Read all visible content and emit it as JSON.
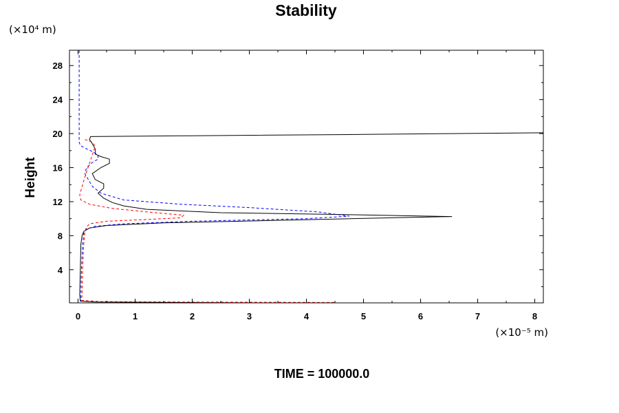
{
  "chart_data": {
    "type": "line",
    "title": "Stability",
    "ylabel": "Height",
    "yunit": "(×10⁴ m)",
    "xunit": "(×10⁻⁵ m)",
    "footer": "TIME = 100000.0",
    "xlim": [
      -0.15,
      8.15
    ],
    "ylim": [
      0.1,
      29.8
    ],
    "xticks": [
      0,
      1,
      2,
      3,
      4,
      5,
      6,
      7,
      8
    ],
    "yticks": [
      4,
      8,
      12,
      16,
      20,
      24,
      28
    ],
    "grid": false,
    "series": [
      {
        "color": "#000000",
        "style": "solid",
        "points": [
          [
            3.1,
            0.1
          ],
          [
            0.3,
            0.2
          ],
          [
            0.04,
            0.3
          ],
          [
            0.03,
            1.0
          ],
          [
            0.04,
            4.0
          ],
          [
            0.05,
            7.0
          ],
          [
            0.07,
            8.0
          ],
          [
            0.1,
            8.5
          ],
          [
            0.2,
            8.9
          ],
          [
            0.5,
            9.2
          ],
          [
            1.5,
            9.5
          ],
          [
            3.5,
            9.8
          ],
          [
            5.5,
            10.1
          ],
          [
            6.55,
            10.25
          ],
          [
            4.5,
            10.5
          ],
          [
            2.5,
            10.7
          ],
          [
            1.2,
            11.1
          ],
          [
            0.8,
            11.5
          ],
          [
            0.6,
            11.9
          ],
          [
            0.45,
            12.4
          ],
          [
            0.35,
            13.0
          ],
          [
            0.45,
            13.6
          ],
          [
            0.45,
            14.1
          ],
          [
            0.3,
            14.6
          ],
          [
            0.25,
            15.3
          ],
          [
            0.4,
            16.0
          ],
          [
            0.55,
            16.5
          ],
          [
            0.55,
            17.0
          ],
          [
            0.4,
            17.3
          ],
          [
            0.3,
            17.6
          ],
          [
            0.3,
            18.2
          ],
          [
            0.25,
            18.8
          ],
          [
            0.2,
            19.3
          ],
          [
            0.22,
            19.65
          ],
          [
            2.0,
            19.75
          ],
          [
            5.0,
            19.9
          ],
          [
            6.5,
            20.0
          ],
          [
            8.15,
            20.1
          ]
        ]
      },
      {
        "color": "#0000ff",
        "style": "dashed",
        "points": [
          [
            0.02,
            29.8
          ],
          [
            0.02,
            24.0
          ],
          [
            0.02,
            19.0
          ],
          [
            0.04,
            18.6
          ],
          [
            0.12,
            18.3
          ],
          [
            0.22,
            18.0
          ],
          [
            0.35,
            17.5
          ],
          [
            0.35,
            17.0
          ],
          [
            0.25,
            16.6
          ],
          [
            0.15,
            16.0
          ],
          [
            0.12,
            15.3
          ],
          [
            0.18,
            14.6
          ],
          [
            0.25,
            13.8
          ],
          [
            0.4,
            13.0
          ],
          [
            0.8,
            12.2
          ],
          [
            1.8,
            11.7
          ],
          [
            3.0,
            11.3
          ],
          [
            4.2,
            10.8
          ],
          [
            4.75,
            10.3
          ],
          [
            4.0,
            10.0
          ],
          [
            2.0,
            9.7
          ],
          [
            0.8,
            9.4
          ],
          [
            0.3,
            9.1
          ],
          [
            0.15,
            8.8
          ],
          [
            0.1,
            8.3
          ],
          [
            0.08,
            7.0
          ],
          [
            0.06,
            4.0
          ],
          [
            0.05,
            1.0
          ],
          [
            0.05,
            0.3
          ]
        ]
      },
      {
        "color": "#ff0000",
        "style": "dashed",
        "points": [
          [
            0.12,
            19.3
          ],
          [
            0.25,
            19.0
          ],
          [
            0.3,
            18.5
          ],
          [
            0.25,
            17.5
          ],
          [
            0.2,
            16.5
          ],
          [
            0.15,
            15.5
          ],
          [
            0.1,
            14.5
          ],
          [
            0.06,
            13.5
          ],
          [
            0.03,
            12.8
          ],
          [
            0.05,
            12.2
          ],
          [
            0.2,
            11.7
          ],
          [
            0.6,
            11.2
          ],
          [
            1.2,
            10.8
          ],
          [
            1.85,
            10.4
          ],
          [
            1.8,
            10.1
          ],
          [
            1.2,
            9.9
          ],
          [
            0.5,
            9.7
          ],
          [
            0.2,
            9.4
          ],
          [
            0.15,
            9.0
          ],
          [
            0.12,
            8.5
          ],
          [
            0.1,
            7.0
          ],
          [
            0.08,
            4.0
          ],
          [
            0.07,
            1.0
          ],
          [
            0.06,
            0.4
          ],
          [
            0.4,
            0.25
          ],
          [
            2.0,
            0.2
          ],
          [
            4.5,
            0.15
          ]
        ]
      }
    ]
  }
}
